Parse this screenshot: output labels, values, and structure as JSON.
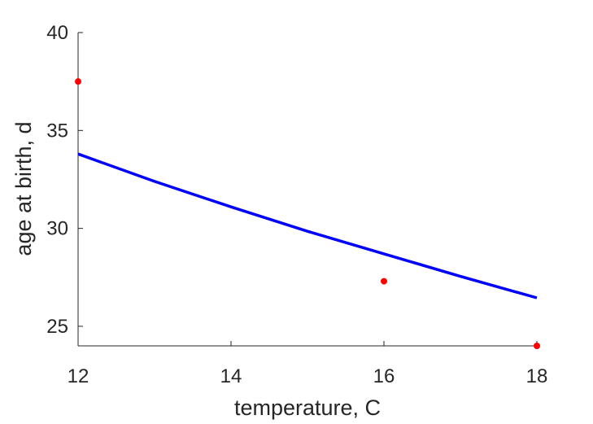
{
  "chart_data": {
    "type": "line",
    "xlabel": "temperature, C",
    "ylabel": "age at birth, d",
    "xlim": [
      12,
      18
    ],
    "ylim": [
      24,
      40
    ],
    "x_ticks": [
      "12",
      "14",
      "16",
      "18"
    ],
    "y_ticks": [
      "25",
      "30",
      "35",
      "40"
    ],
    "grid": false,
    "series": [
      {
        "kind": "line",
        "color": "#0000ff",
        "x": [
          12,
          13,
          14,
          15,
          16,
          17,
          18
        ],
        "y": [
          33.8,
          32.4,
          31.1,
          29.85,
          28.7,
          27.55,
          26.45
        ]
      },
      {
        "kind": "scatter",
        "color": "#ff0000",
        "x": [
          12,
          16,
          18
        ],
        "y": [
          37.5,
          27.3,
          24.0
        ]
      }
    ]
  }
}
